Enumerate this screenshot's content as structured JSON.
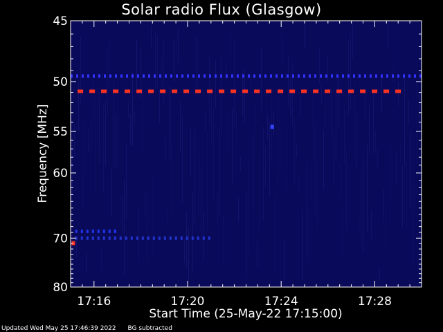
{
  "chart_data": {
    "type": "heatmap",
    "title": "Solar radio Flux (Glasgow)",
    "xlabel": "Start Time (25-May-22 17:15:00)",
    "ylabel": "Frequency [MHz]",
    "x_ticks": [
      "17:16",
      "17:20",
      "17:24",
      "17:28"
    ],
    "x_tick_minutes": [
      1,
      5,
      9,
      13
    ],
    "xlim_minutes": [
      0,
      15
    ],
    "y_ticks": [
      45,
      50,
      55,
      60,
      70,
      80
    ],
    "ylim": [
      45,
      80
    ],
    "colors": {
      "background": "#000000",
      "frame": "#ffffff",
      "low": "#0a0a5a",
      "mid": "#2a2aff",
      "high": "#ff2a1a"
    },
    "features": [
      {
        "kind": "dashed-band",
        "freq": 49.5,
        "color": "#3333ff",
        "x_start": 0.0,
        "x_end": 15.0
      },
      {
        "kind": "dashed-band",
        "freq": 50.9,
        "color": "#ff3322",
        "x_start": 0.3,
        "x_end": 13.9
      },
      {
        "kind": "spot",
        "freq": 54.5,
        "color": "#3344ff",
        "x": 8.6
      },
      {
        "kind": "spot",
        "freq": 70.9,
        "color": "#ff3322",
        "x": 0.1
      },
      {
        "kind": "dashed-band",
        "freq": 68.8,
        "color": "#2233ee",
        "x_start": 0.2,
        "x_end": 2.0
      },
      {
        "kind": "dashed-band",
        "freq": 70.0,
        "color": "#2233cc",
        "x_start": 0.2,
        "x_end": 6.0
      }
    ]
  },
  "footer": {
    "updated": "Updated Wed May 25 17:46:39 2022",
    "note": "BG subtracted"
  }
}
